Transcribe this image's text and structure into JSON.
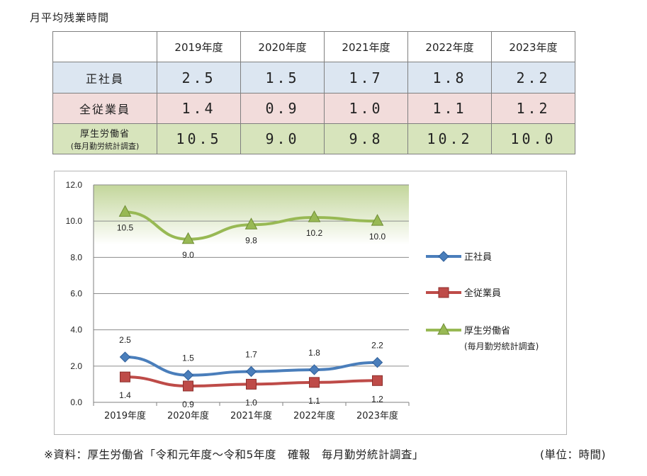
{
  "title": "月平均残業時間",
  "table": {
    "columns": [
      "2019年度",
      "2020年度",
      "2021年度",
      "2022年度",
      "2023年度"
    ],
    "rows": [
      {
        "label": "正社員",
        "values": [
          "2.5",
          "1.5",
          "1.7",
          "1.8",
          "2.2"
        ]
      },
      {
        "label": "全従業員",
        "values": [
          "1.4",
          "0.9",
          "1.0",
          "1.1",
          "1.2"
        ]
      },
      {
        "label": "厚生労働省",
        "sublabel": "(毎月勤労統計調査)",
        "values": [
          "10.5",
          "9.0",
          "9.8",
          "10.2",
          "10.0"
        ]
      }
    ]
  },
  "chart_data": {
    "type": "line",
    "categories": [
      "2019年度",
      "2020年度",
      "2021年度",
      "2022年度",
      "2023年度"
    ],
    "ylim": [
      0,
      12
    ],
    "yticks": [
      "0.0",
      "2.0",
      "4.0",
      "6.0",
      "8.0",
      "10.0",
      "12.0"
    ],
    "grid": true,
    "legend_position": "right",
    "series": [
      {
        "name": "正社員",
        "values": [
          2.5,
          1.5,
          1.7,
          1.8,
          2.2
        ],
        "labels": [
          "2.5",
          "1.5",
          "1.7",
          "1.8",
          "2.2"
        ],
        "color": "#4a7ebb",
        "marker": "diamond"
      },
      {
        "name": "全従業員",
        "values": [
          1.4,
          0.9,
          1.0,
          1.1,
          1.2
        ],
        "labels": [
          "1.4",
          "0.9",
          "1.0",
          "1.1",
          "1.2"
        ],
        "color": "#be4b48",
        "marker": "square"
      },
      {
        "name": "厚生労働省",
        "name_line2": "(毎月勤労統計調査)",
        "values": [
          10.5,
          9.0,
          9.8,
          10.2,
          10.0
        ],
        "labels": [
          "10.5",
          "9.0",
          "9.8",
          "10.2",
          "10.0"
        ],
        "color": "#98b954",
        "marker": "triangle"
      }
    ]
  },
  "footnote": "※資料：厚生労働省「令和元年度～令和5年度　確報　毎月勤労統計調査」",
  "unit_note": "(単位：時間)"
}
